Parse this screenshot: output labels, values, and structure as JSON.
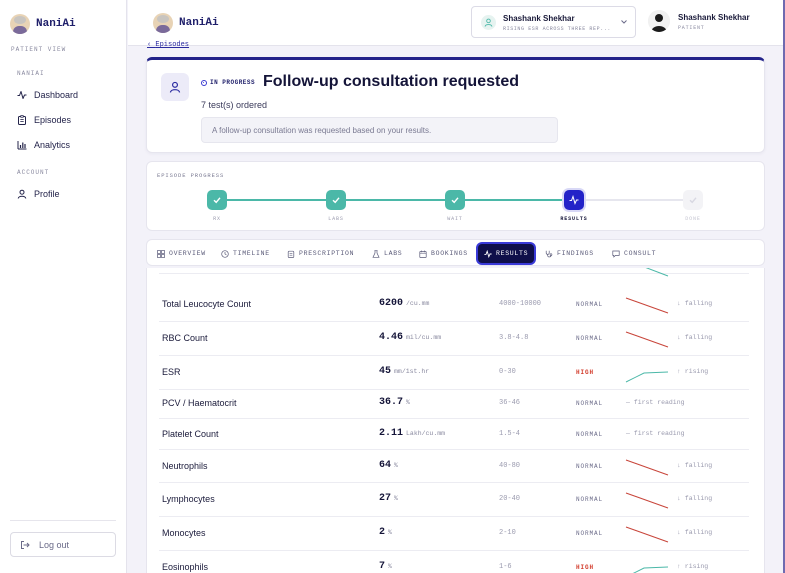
{
  "app": {
    "brand": "NaniAi",
    "view_caption": "PATIENT VIEW"
  },
  "sidebar": {
    "section_main": "NANIAI",
    "items": [
      {
        "label": "Dashboard",
        "icon": "activity-icon"
      },
      {
        "label": "Episodes",
        "icon": "clipboard-icon"
      },
      {
        "label": "Analytics",
        "icon": "bar-chart-icon"
      }
    ],
    "section_account": "ACCOUNT",
    "account_items": [
      {
        "label": "Profile",
        "icon": "user-icon"
      }
    ],
    "logout_label": "Log out"
  },
  "topbar": {
    "brand": "NaniAi",
    "patient": {
      "name": "Shashank Shekhar",
      "subtitle": "RISING ESR ACROSS THREE REP..."
    },
    "user": {
      "name": "Shashank Shekhar",
      "role": "PATIENT"
    }
  },
  "episode": {
    "back_label": "Episodes",
    "status": "IN PROGRESS",
    "title": "Follow-up consultation requested",
    "tests_ordered": "7 test(s) ordered",
    "note": "A follow-up consultation was requested based on your results."
  },
  "progress": {
    "title": "EPISODE PROGRESS",
    "steps": [
      {
        "label": "RX",
        "state": "done"
      },
      {
        "label": "LABS",
        "state": "done"
      },
      {
        "label": "WAIT",
        "state": "done"
      },
      {
        "label": "RESULTS",
        "state": "current"
      },
      {
        "label": "DONE",
        "state": "todo"
      }
    ]
  },
  "tabs": [
    {
      "label": "OVERVIEW",
      "icon": "grid-icon"
    },
    {
      "label": "TIMELINE",
      "icon": "clock-icon"
    },
    {
      "label": "PRESCRIPTION",
      "icon": "clipboard-icon"
    },
    {
      "label": "LABS",
      "icon": "flask-icon"
    },
    {
      "label": "BOOKINGS",
      "icon": "calendar-icon"
    },
    {
      "label": "RESULTS",
      "icon": "activity-icon",
      "active": true
    },
    {
      "label": "FINDINGS",
      "icon": "stethoscope-icon"
    },
    {
      "label": "CONSULT",
      "icon": "chat-icon"
    }
  ],
  "colors": {
    "accent": "#2323c8",
    "nav_active": "#0f0f4a",
    "done": "#4bb8a8",
    "high": "#d23b2b",
    "falling_line": "#c8453a",
    "rising_line": "#4bb8a8"
  },
  "results": [
    {
      "name": "Total Leucocyte Count",
      "value": "6200",
      "unit": "/cu.mm",
      "ref": "4000-10000",
      "flag": "NORMAL",
      "trend": "↓ falling"
    },
    {
      "name": "RBC Count",
      "value": "4.46",
      "unit": "mil/cu.mm",
      "ref": "3.8-4.8",
      "flag": "NORMAL",
      "trend": "↓ falling"
    },
    {
      "name": "ESR",
      "value": "45",
      "unit": "mm/1st.hr",
      "ref": "0-30",
      "flag": "HIGH",
      "trend": "↑ rising"
    },
    {
      "name": "PCV / Haematocrit",
      "value": "36.7",
      "unit": "%",
      "ref": "36-46",
      "flag": "NORMAL",
      "trend": "— first reading"
    },
    {
      "name": "Platelet Count",
      "value": "2.11",
      "unit": "Lakh/cu.mm",
      "ref": "1.5-4",
      "flag": "NORMAL",
      "trend": "— first reading"
    },
    {
      "name": "Neutrophils",
      "value": "64",
      "unit": "%",
      "ref": "40-80",
      "flag": "NORMAL",
      "trend": "↓ falling"
    },
    {
      "name": "Lymphocytes",
      "value": "27",
      "unit": "%",
      "ref": "20-40",
      "flag": "NORMAL",
      "trend": "↓ falling"
    },
    {
      "name": "Monocytes",
      "value": "2",
      "unit": "%",
      "ref": "2-10",
      "flag": "NORMAL",
      "trend": "↓ falling"
    },
    {
      "name": "Eosinophils",
      "value": "7",
      "unit": "%",
      "ref": "1-6",
      "flag": "HIGH",
      "trend": "↑ rising"
    }
  ]
}
